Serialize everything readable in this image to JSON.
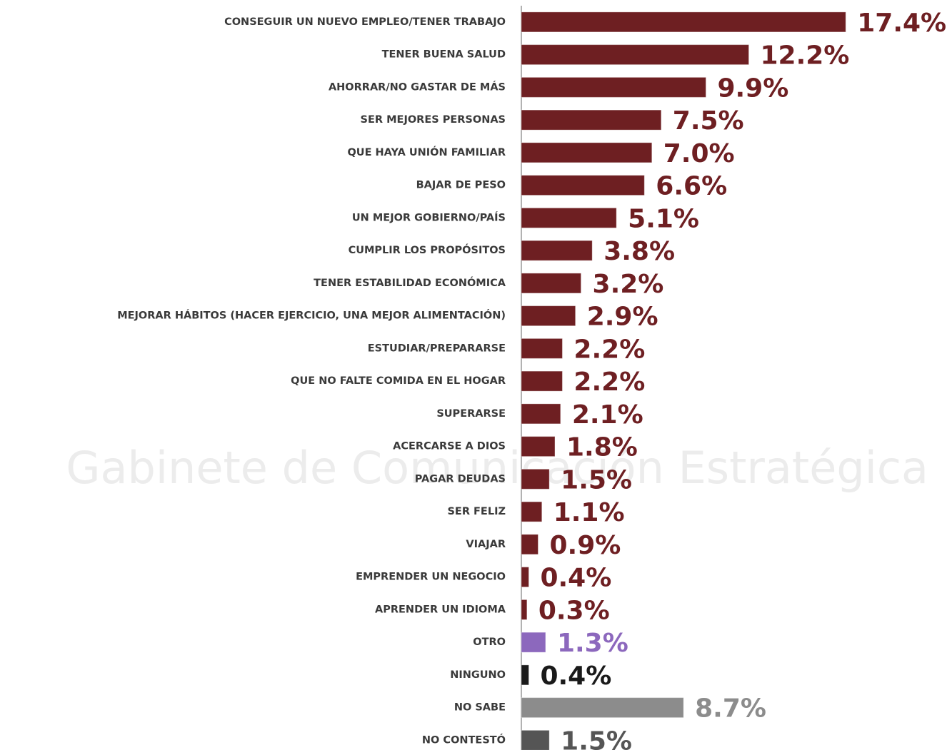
{
  "chart_data": {
    "type": "barh",
    "watermark": "Gabinete de Comunicación Estratégica",
    "categories": [
      "CONSEGUIR UN NUEVO EMPLEO/TENER TRABAJO",
      "TENER BUENA SALUD",
      "AHORRAR/NO GASTAR DE MÁS",
      "SER MEJORES PERSONAS",
      "QUE HAYA UNIÓN FAMILIAR",
      "BAJAR DE PESO",
      "UN MEJOR GOBIERNO/PAÍS",
      "CUMPLIR LOS PROPÓSITOS",
      "TENER ESTABILIDAD ECONÓMICA",
      "MEJORAR HÁBITOS (HACER EJERCICIO, UNA MEJOR ALIMENTACIÓN)",
      "ESTUDIAR/PREPARARSE",
      "QUE NO FALTE COMIDA EN EL HOGAR",
      "SUPERARSE",
      "ACERCARSE A DIOS",
      "PAGAR DEUDAS",
      "SER FELIZ",
      "VIAJAR",
      "EMPRENDER UN NEGOCIO",
      "APRENDER UN IDIOMA",
      "OTRO",
      "NINGUNO",
      "NO SABE",
      "NO CONTESTÓ"
    ],
    "values": [
      17.4,
      12.2,
      9.9,
      7.5,
      7.0,
      6.6,
      5.1,
      3.8,
      3.2,
      2.9,
      2.2,
      2.2,
      2.1,
      1.8,
      1.5,
      1.1,
      0.9,
      0.4,
      0.3,
      1.3,
      0.4,
      8.7,
      1.5
    ],
    "value_labels": [
      "17.4%",
      "12.2%",
      "9.9%",
      "7.5%",
      "7.0%",
      "6.6%",
      "5.1%",
      "3.8%",
      "3.2%",
      "2.9%",
      "2.2%",
      "2.2%",
      "2.1%",
      "1.8%",
      "1.5%",
      "1.1%",
      "0.9%",
      "0.4%",
      "0.3%",
      "1.3%",
      "0.4%",
      "8.7%",
      "1.5%"
    ],
    "colors": [
      "#6e1f22",
      "#6e1f22",
      "#6e1f22",
      "#6e1f22",
      "#6e1f22",
      "#6e1f22",
      "#6e1f22",
      "#6e1f22",
      "#6e1f22",
      "#6e1f22",
      "#6e1f22",
      "#6e1f22",
      "#6e1f22",
      "#6e1f22",
      "#6e1f22",
      "#6e1f22",
      "#6e1f22",
      "#6e1f22",
      "#6e1f22",
      "#8c68bd",
      "#1a1a1a",
      "#8c8c8c",
      "#555555"
    ],
    "xlim": [
      0,
      22.6
    ]
  }
}
